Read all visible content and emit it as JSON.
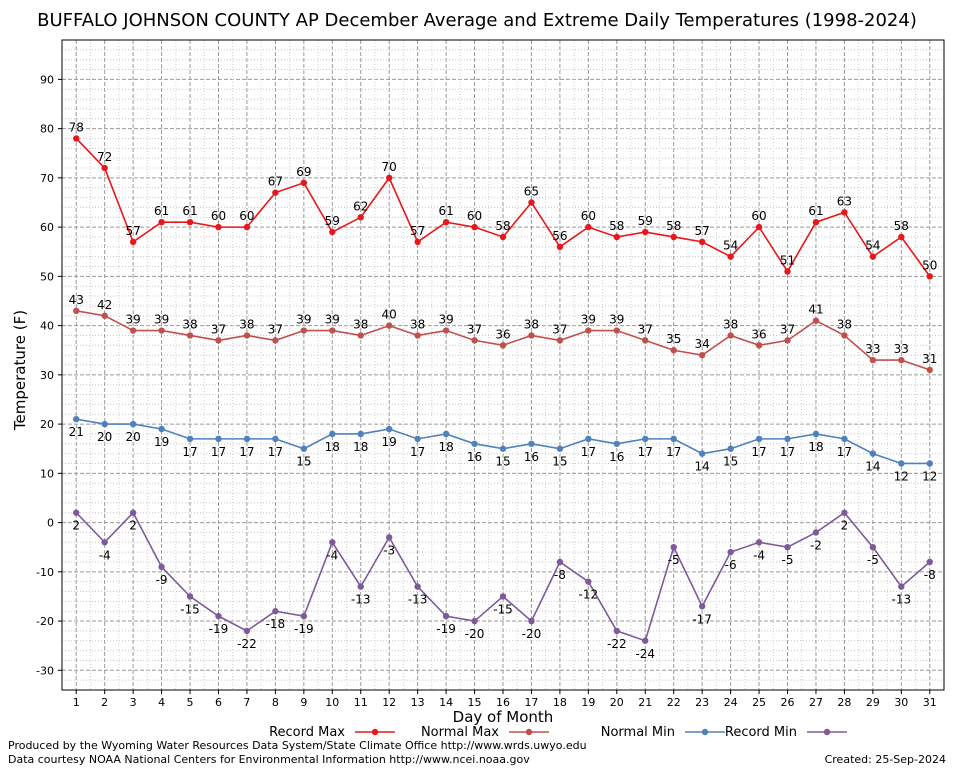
{
  "chart_data": {
    "type": "line",
    "title": "BUFFALO JOHNSON COUNTY AP December Average and Extreme Daily Temperatures (1998-2024)",
    "xlabel": "Day of Month",
    "ylabel": "Temperature (F)",
    "x": [
      1,
      2,
      3,
      4,
      5,
      6,
      7,
      8,
      9,
      10,
      11,
      12,
      13,
      14,
      15,
      16,
      17,
      18,
      19,
      20,
      21,
      22,
      23,
      24,
      25,
      26,
      27,
      28,
      29,
      30,
      31
    ],
    "x_ticks": [
      "1",
      "2",
      "3",
      "4",
      "5",
      "6",
      "7",
      "8",
      "9",
      "10",
      "11",
      "12",
      "13",
      "14",
      "15",
      "16",
      "17",
      "18",
      "19",
      "20",
      "21",
      "22",
      "23",
      "24",
      "25",
      "26",
      "27",
      "28",
      "29",
      "30",
      "31"
    ],
    "xlim": [
      0.5,
      31.5
    ],
    "ylim": [
      -34,
      98
    ],
    "y_ticks": [
      "-30",
      "-20",
      "-10",
      "0",
      "10",
      "20",
      "30",
      "40",
      "50",
      "60",
      "70",
      "80",
      "90"
    ],
    "grid": true,
    "legend_position": "bottom",
    "series": [
      {
        "name": "Record Max",
        "color": "#e8171b",
        "label_position": "above",
        "values": [
          78,
          72,
          57,
          61,
          61,
          60,
          60,
          67,
          69,
          59,
          62,
          70,
          57,
          61,
          60,
          58,
          65,
          56,
          60,
          58,
          59,
          58,
          57,
          54,
          60,
          51,
          61,
          63,
          54,
          58,
          50
        ]
      },
      {
        "name": "Normal Max",
        "color": "#c0504d",
        "label_position": "above",
        "values": [
          43,
          42,
          39,
          39,
          38,
          37,
          38,
          37,
          39,
          39,
          38,
          40,
          38,
          39,
          37,
          36,
          38,
          37,
          39,
          39,
          37,
          35,
          34,
          38,
          36,
          37,
          41,
          38,
          33,
          33,
          31
        ]
      },
      {
        "name": "Normal Min",
        "color": "#4f81bd",
        "label_position": "below",
        "values": [
          21,
          20,
          20,
          19,
          17,
          17,
          17,
          17,
          15,
          18,
          18,
          19,
          17,
          18,
          16,
          15,
          16,
          15,
          17,
          16,
          17,
          17,
          14,
          15,
          17,
          17,
          18,
          17,
          14,
          12,
          12
        ]
      },
      {
        "name": "Record Min",
        "color": "#7e5a9b",
        "label_position": "below",
        "values": [
          2,
          -4,
          2,
          -9,
          -15,
          -19,
          -22,
          -18,
          -19,
          -4,
          -13,
          -3,
          -13,
          -19,
          -20,
          -15,
          -20,
          -8,
          -12,
          -22,
          -24,
          -5,
          -17,
          -6,
          -4,
          -5,
          -2,
          2,
          -5,
          -13,
          -8
        ]
      }
    ]
  },
  "footer": {
    "credit_line1": "Produced by the Wyoming Water Resources Data System/State Climate Office http://www.wrds.uwyo.edu",
    "credit_line2": "Data courtesy NOAA National Centers for Environmental Information http://www.ncei.noaa.gov",
    "created": "Created:  25-Sep-2024"
  }
}
